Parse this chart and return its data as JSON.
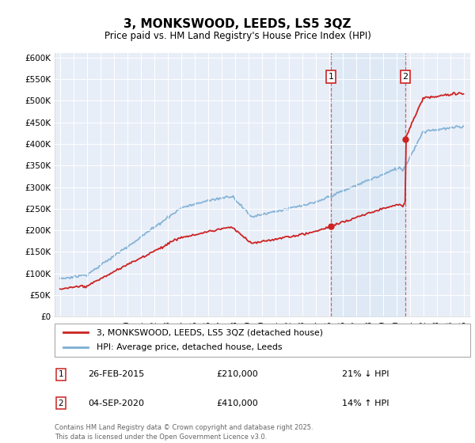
{
  "title": "3, MONKSWOOD, LEEDS, LS5 3QZ",
  "subtitle": "Price paid vs. HM Land Registry's House Price Index (HPI)",
  "hpi_color": "#7aadd4",
  "price_color": "#cc2222",
  "sale1_t": 2015.15,
  "sale1_price": 210000,
  "sale2_t": 2020.68,
  "sale2_price": 410000,
  "annotation1_label": "1",
  "annotation2_label": "2",
  "legend_line1": "3, MONKSWOOD, LEEDS, LS5 3QZ (detached house)",
  "legend_line2": "HPI: Average price, detached house, Leeds",
  "note1_label": "1",
  "note1_date": "26-FEB-2015",
  "note1_price": "£210,000",
  "note1_hpi": "21% ↓ HPI",
  "note2_label": "2",
  "note2_date": "04-SEP-2020",
  "note2_price": "£410,000",
  "note2_hpi": "14% ↑ HPI",
  "copyright": "Contains HM Land Registry data © Crown copyright and database right 2025.\nThis data is licensed under the Open Government Licence v3.0.",
  "background_color": "#e8eef8",
  "plot_bg_color": "#ffffff",
  "shade_color": "#dce8f5"
}
